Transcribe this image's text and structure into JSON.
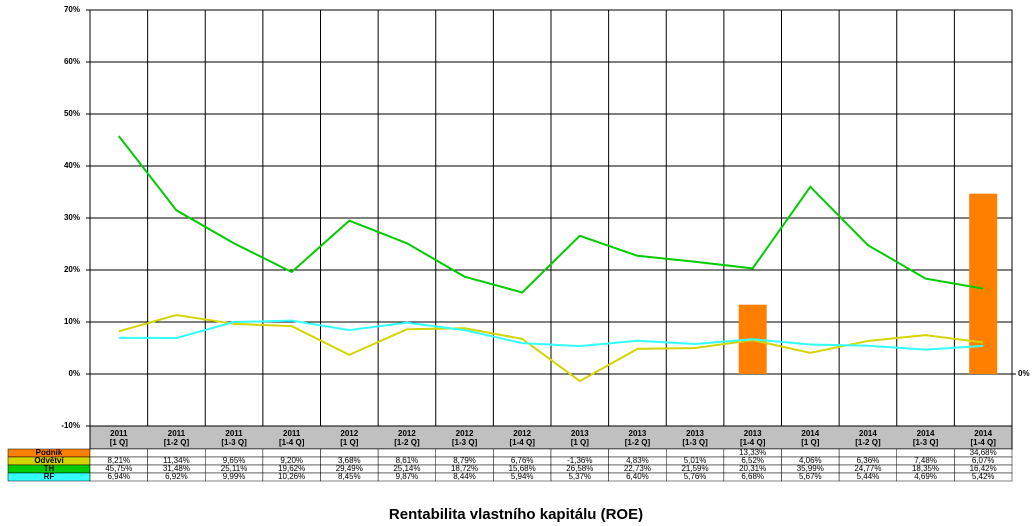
{
  "chart_data": {
    "type": "line",
    "title": "Rentabilita vlastního kapitálu (ROE)",
    "categories": [
      "2011\n[1 Q]",
      "2011\n[1-2 Q]",
      "2011\n[1-3 Q]",
      "2011\n[1-4 Q]",
      "2012\n[1 Q]",
      "2012\n[1-2 Q]",
      "2012\n[1-3 Q]",
      "2012\n[1-4 Q]",
      "2013\n[1 Q]",
      "2013\n[1-2 Q]",
      "2013\n[1-3 Q]",
      "2013\n[1-4 Q]",
      "2014\n[1 Q]",
      "2014\n[1-2 Q]",
      "2014\n[1-3 Q]",
      "2014\n[1-4 Q]"
    ],
    "series": [
      {
        "name": "Podnik",
        "type": "bar",
        "color": "#ff8000",
        "values": [
          null,
          null,
          null,
          null,
          null,
          null,
          null,
          null,
          null,
          null,
          null,
          13.33,
          null,
          null,
          null,
          34.68
        ],
        "value_labels": [
          null,
          null,
          null,
          null,
          null,
          null,
          null,
          null,
          null,
          null,
          null,
          "13,33%",
          null,
          null,
          null,
          "34,68%"
        ]
      },
      {
        "name": "Odvětví",
        "type": "line",
        "color": "#d4d400",
        "values": [
          8.21,
          11.34,
          9.65,
          9.2,
          3.68,
          8.61,
          8.79,
          6.76,
          -1.36,
          4.83,
          5.01,
          6.52,
          4.06,
          6.36,
          7.48,
          6.07
        ],
        "value_labels": [
          "8,21%",
          "11,34%",
          "9,65%",
          "9,20%",
          "3,68%",
          "8,61%",
          "8,79%",
          "6,76%",
          "-1,36%",
          "4,83%",
          "5,01%",
          "6,52%",
          "4,06%",
          "6,36%",
          "7,48%",
          "6,07%"
        ]
      },
      {
        "name": "TH",
        "type": "line",
        "color": "#00cc00",
        "values": [
          45.75,
          31.48,
          25.11,
          19.62,
          29.49,
          25.14,
          18.72,
          15.68,
          26.58,
          22.73,
          21.59,
          20.31,
          35.99,
          24.77,
          18.35,
          16.42
        ],
        "value_labels": [
          "45,75%",
          "31,48%",
          "25,11%",
          "19,62%",
          "29,49%",
          "25,14%",
          "18,72%",
          "15,68%",
          "26,58%",
          "22,73%",
          "21,59%",
          "20,31%",
          "35,99%",
          "24,77%",
          "18,35%",
          "16,42%"
        ]
      },
      {
        "name": "RF",
        "type": "line",
        "color": "#33ffff",
        "values": [
          6.94,
          6.92,
          9.99,
          10.26,
          8.45,
          9.87,
          8.44,
          5.94,
          5.37,
          6.4,
          5.76,
          6.68,
          5.67,
          5.44,
          4.69,
          5.42
        ],
        "value_labels": [
          "6,94%",
          "6,92%",
          "9,99%",
          "10,26%",
          "8,45%",
          "9,87%",
          "8,44%",
          "5,94%",
          "5,37%",
          "6,40%",
          "5,76%",
          "6,68%",
          "5,67%",
          "5,44%",
          "4,69%",
          "5,42%"
        ]
      }
    ],
    "ylim": [
      -10,
      70
    ],
    "yticks": [
      {
        "value": -10,
        "label": "-10%"
      },
      {
        "value": 0,
        "label": "0%"
      },
      {
        "value": 10,
        "label": "10%"
      },
      {
        "value": 20,
        "label": "20%"
      },
      {
        "value": 30,
        "label": "30%"
      },
      {
        "value": 40,
        "label": "40%"
      },
      {
        "value": 50,
        "label": "50%"
      },
      {
        "value": 60,
        "label": "60%"
      },
      {
        "value": 70,
        "label": "70%"
      }
    ],
    "y2lim": [
      -10,
      70
    ],
    "y2ticks": [
      {
        "value": 0,
        "label": "0%"
      }
    ],
    "grid": true
  }
}
